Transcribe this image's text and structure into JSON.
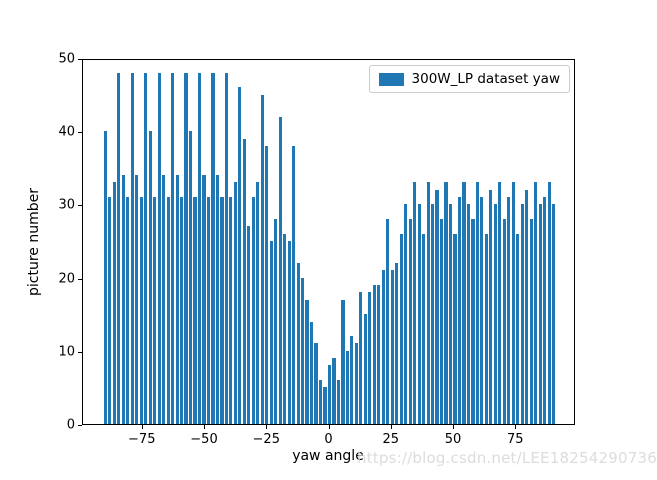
{
  "chart_data": {
    "type": "bar",
    "title": "",
    "xlabel": "yaw angle",
    "ylabel": "picture number",
    "legend_label": "300W_LP dataset yaw",
    "legend_position": "upper right",
    "bar_color": "#1f77b4",
    "grid": false,
    "xlim": [
      -99,
      99
    ],
    "ylim": [
      0,
      50
    ],
    "xticks": [
      -75,
      -50,
      -25,
      0,
      25,
      50,
      75
    ],
    "yticks": [
      0,
      10,
      20,
      30,
      40,
      50
    ],
    "x_start": -90,
    "x_step": 1.8,
    "values": [
      40,
      31,
      33,
      48,
      34,
      31,
      48,
      34,
      31,
      48,
      40,
      31,
      48,
      34,
      31,
      48,
      34,
      31,
      48,
      40,
      31,
      48,
      34,
      31,
      48,
      34,
      31,
      48,
      31,
      33,
      46,
      39,
      27,
      31,
      33,
      45,
      38,
      25,
      28,
      42,
      26,
      25,
      38,
      22,
      20,
      17,
      14,
      11,
      6,
      5,
      8,
      9,
      6,
      17,
      10,
      12,
      11,
      18,
      15,
      18,
      19,
      19,
      21,
      28,
      21,
      22,
      26,
      30,
      28,
      33,
      30,
      26,
      33,
      30,
      32,
      28,
      33,
      30,
      26,
      31,
      33,
      30,
      28,
      33,
      31,
      26,
      32,
      30,
      33,
      28,
      31,
      33,
      26,
      30,
      32,
      28,
      33,
      30,
      31,
      33,
      30
    ]
  },
  "watermark": {
    "text": "https://blog.csdn.net/LEE18254290736",
    "color": "#dcdcdc"
  }
}
